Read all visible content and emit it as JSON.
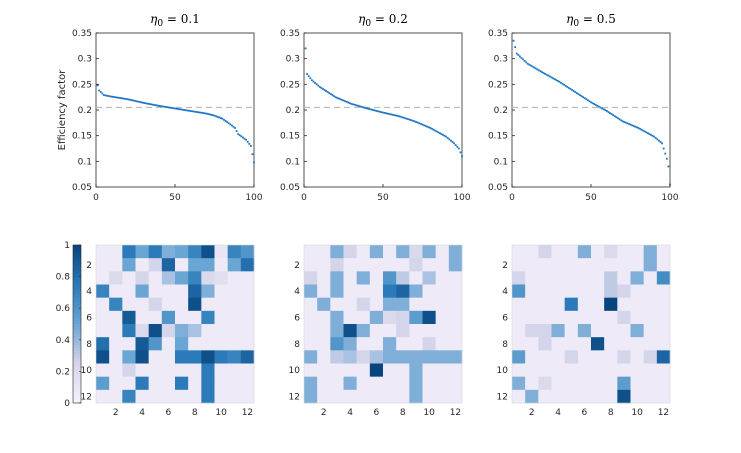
{
  "chart_data": [
    {
      "type": "scatter",
      "panel": "top-1",
      "title_symbol": "η",
      "title_subscript": "0",
      "title_rest": " = 0.1",
      "ylabel": "Efficiency factor",
      "xlim": [
        0,
        100
      ],
      "ylim": [
        0.05,
        0.35
      ],
      "xticks": [
        "0",
        "50",
        "100"
      ],
      "yticks": [
        "0.05",
        "0.1",
        "0.15",
        "0.2",
        "0.25",
        "0.3",
        "0.35"
      ],
      "reference_line": 0.205,
      "curve_anchors": [
        [
          1,
          0.248
        ],
        [
          2,
          0.238
        ],
        [
          5,
          0.229
        ],
        [
          10,
          0.226
        ],
        [
          20,
          0.221
        ],
        [
          30,
          0.214
        ],
        [
          40,
          0.208
        ],
        [
          50,
          0.203
        ],
        [
          60,
          0.198
        ],
        [
          70,
          0.193
        ],
        [
          75,
          0.189
        ],
        [
          80,
          0.183
        ],
        [
          85,
          0.172
        ],
        [
          88,
          0.165
        ],
        [
          90,
          0.153
        ],
        [
          95,
          0.142
        ],
        [
          98,
          0.13
        ],
        [
          100,
          0.098
        ]
      ],
      "n_points": 100,
      "color": "#1f77c4",
      "grid": false
    },
    {
      "type": "scatter",
      "panel": "top-2",
      "title_symbol": "η",
      "title_subscript": "0",
      "title_rest": " = 0.2",
      "ylabel": "",
      "xlim": [
        0,
        100
      ],
      "ylim": [
        0.05,
        0.35
      ],
      "xticks": [
        "0",
        "50",
        "100"
      ],
      "yticks": [
        "0.05",
        "0.1",
        "0.15",
        "0.2",
        "0.25",
        "0.3",
        "0.35"
      ],
      "reference_line": 0.205,
      "curve_anchors": [
        [
          1,
          0.32
        ],
        [
          2,
          0.27
        ],
        [
          5,
          0.258
        ],
        [
          10,
          0.245
        ],
        [
          20,
          0.225
        ],
        [
          30,
          0.212
        ],
        [
          40,
          0.203
        ],
        [
          50,
          0.195
        ],
        [
          60,
          0.188
        ],
        [
          70,
          0.178
        ],
        [
          80,
          0.165
        ],
        [
          90,
          0.148
        ],
        [
          95,
          0.135
        ],
        [
          98,
          0.125
        ],
        [
          100,
          0.11
        ]
      ],
      "n_points": 100,
      "color": "#1f77c4",
      "grid": false
    },
    {
      "type": "scatter",
      "panel": "top-3",
      "title_symbol": "η",
      "title_subscript": "0",
      "title_rest": " = 0.5",
      "ylabel": "",
      "xlim": [
        0,
        100
      ],
      "ylim": [
        0.05,
        0.35
      ],
      "xticks": [
        "0",
        "50",
        "100"
      ],
      "yticks": [
        "0.05",
        "0.1",
        "0.15",
        "0.2",
        "0.25",
        "0.3",
        "0.35"
      ],
      "reference_line": 0.205,
      "curve_anchors": [
        [
          1,
          0.335
        ],
        [
          3,
          0.31
        ],
        [
          10,
          0.29
        ],
        [
          20,
          0.272
        ],
        [
          30,
          0.255
        ],
        [
          40,
          0.235
        ],
        [
          50,
          0.215
        ],
        [
          60,
          0.198
        ],
        [
          70,
          0.178
        ],
        [
          80,
          0.165
        ],
        [
          90,
          0.148
        ],
        [
          95,
          0.135
        ],
        [
          98,
          0.105
        ],
        [
          99,
          0.09
        ],
        [
          100,
          0.055
        ]
      ],
      "n_points": 100,
      "color": "#1f77c4",
      "grid": false
    },
    {
      "type": "heatmap",
      "panel": "bottom-1",
      "size": 12,
      "xticks": [
        "2",
        "4",
        "6",
        "8",
        "10",
        "12"
      ],
      "yticks": [
        "2",
        "4",
        "6",
        "8",
        "10",
        "12"
      ],
      "clim": [
        0,
        1
      ],
      "colorbar_ticks": [
        "0",
        "0.2",
        "0.4",
        "0.6",
        "0.8",
        "1"
      ],
      "color_low": "#f4eef8",
      "color_high": "#08457e",
      "values": [
        [
          0.05,
          0.05,
          0.75,
          0.5,
          0.75,
          0.45,
          0.5,
          0.7,
          0.95,
          0.1,
          0.7,
          0.6
        ],
        [
          0.05,
          0.05,
          0.5,
          0.05,
          0.25,
          0.85,
          0.05,
          0.5,
          0.5,
          0.05,
          0.5,
          0.8
        ],
        [
          0.05,
          0.2,
          0.05,
          0.25,
          0.05,
          0.35,
          0.5,
          0.7,
          0.2,
          0.15,
          0.05,
          0.05
        ],
        [
          0.7,
          0.05,
          0.05,
          0.5,
          0.05,
          0.05,
          0.05,
          0.85,
          0.45,
          0.05,
          0.05,
          0.05
        ],
        [
          0.05,
          0.7,
          0.05,
          0.05,
          0.25,
          0.05,
          0.05,
          0.95,
          0.05,
          0.05,
          0.05,
          0.05
        ],
        [
          0.05,
          0.05,
          0.9,
          0.05,
          0.05,
          0.6,
          0.05,
          0.05,
          0.7,
          0.05,
          0.05,
          0.05
        ],
        [
          0.05,
          0.05,
          0.75,
          0.2,
          0.95,
          0.25,
          0.45,
          0.35,
          0.05,
          0.05,
          0.05,
          0.05
        ],
        [
          0.8,
          0.05,
          0.05,
          0.9,
          0.6,
          0.05,
          0.5,
          0.05,
          0.05,
          0.05,
          0.05,
          0.05
        ],
        [
          0.95,
          0.05,
          0.5,
          0.95,
          0.05,
          0.05,
          0.75,
          0.75,
          0.95,
          0.75,
          0.7,
          0.85
        ],
        [
          0.05,
          0.05,
          0.25,
          0.05,
          0.05,
          0.05,
          0.05,
          0.05,
          0.75,
          0.05,
          0.05,
          0.05
        ],
        [
          0.55,
          0.05,
          0.05,
          0.75,
          0.05,
          0.05,
          0.75,
          0.05,
          0.75,
          0.05,
          0.05,
          0.05
        ],
        [
          0.05,
          0.05,
          0.7,
          0.05,
          0.05,
          0.05,
          0.05,
          0.05,
          0.75,
          0.05,
          0.05,
          0.05
        ]
      ]
    },
    {
      "type": "heatmap",
      "panel": "bottom-2",
      "size": 12,
      "xticks": [
        "2",
        "4",
        "6",
        "8",
        "10",
        "12"
      ],
      "yticks": [
        "2",
        "4",
        "6",
        "8",
        "10",
        "12"
      ],
      "clim": [
        0,
        1
      ],
      "values": [
        [
          0.05,
          0.05,
          0.45,
          0.25,
          0.05,
          0.45,
          0.05,
          0.45,
          0.2,
          0.45,
          0.05,
          0.45
        ],
        [
          0.05,
          0.05,
          0.25,
          0.05,
          0.05,
          0.05,
          0.05,
          0.05,
          0.25,
          0.05,
          0.05,
          0.45
        ],
        [
          0.25,
          0.05,
          0.45,
          0.05,
          0.45,
          0.05,
          0.6,
          0.3,
          0.05,
          0.35,
          0.05,
          0.05
        ],
        [
          0.45,
          0.05,
          0.45,
          0.05,
          0.05,
          0.05,
          0.75,
          0.85,
          0.45,
          0.05,
          0.05,
          0.05
        ],
        [
          0.05,
          0.45,
          0.05,
          0.05,
          0.25,
          0.05,
          0.45,
          0.45,
          0.05,
          0.05,
          0.05,
          0.05
        ],
        [
          0.05,
          0.05,
          0.45,
          0.05,
          0.05,
          0.45,
          0.2,
          0.25,
          0.55,
          0.95,
          0.05,
          0.05
        ],
        [
          0.05,
          0.05,
          0.45,
          0.95,
          0.45,
          0.05,
          0.05,
          0.25,
          0.05,
          0.05,
          0.05,
          0.05
        ],
        [
          0.05,
          0.05,
          0.6,
          0.45,
          0.05,
          0.05,
          0.45,
          0.05,
          0.05,
          0.25,
          0.05,
          0.05
        ],
        [
          0.45,
          0.05,
          0.3,
          0.35,
          0.25,
          0.35,
          0.45,
          0.45,
          0.45,
          0.45,
          0.45,
          0.45
        ],
        [
          0.05,
          0.05,
          0.05,
          0.05,
          0.05,
          1.0,
          0.05,
          0.05,
          0.45,
          0.05,
          0.05,
          0.05
        ],
        [
          0.45,
          0.05,
          0.05,
          0.45,
          0.05,
          0.05,
          0.05,
          0.05,
          0.45,
          0.05,
          0.05,
          0.05
        ],
        [
          0.45,
          0.05,
          0.05,
          0.05,
          0.05,
          0.05,
          0.05,
          0.05,
          0.45,
          0.05,
          0.05,
          0.05
        ]
      ]
    },
    {
      "type": "heatmap",
      "panel": "bottom-3",
      "size": 12,
      "xticks": [
        "2",
        "4",
        "6",
        "8",
        "10",
        "12"
      ],
      "yticks": [
        "2",
        "4",
        "6",
        "8",
        "10",
        "12"
      ],
      "clim": [
        0,
        1
      ],
      "values": [
        [
          0.05,
          0.05,
          0.25,
          0.05,
          0.05,
          0.45,
          0.05,
          0.2,
          0.05,
          0.05,
          0.45,
          0.05
        ],
        [
          0.05,
          0.05,
          0.05,
          0.05,
          0.05,
          0.05,
          0.05,
          0.05,
          0.05,
          0.05,
          0.45,
          0.05
        ],
        [
          0.25,
          0.05,
          0.05,
          0.05,
          0.05,
          0.05,
          0.05,
          0.3,
          0.05,
          0.45,
          0.05,
          0.65
        ],
        [
          0.6,
          0.05,
          0.05,
          0.05,
          0.05,
          0.05,
          0.05,
          0.3,
          0.25,
          0.05,
          0.05,
          0.05
        ],
        [
          0.05,
          0.05,
          0.05,
          0.05,
          0.75,
          0.05,
          0.05,
          1.0,
          0.05,
          0.05,
          0.05,
          0.05
        ],
        [
          0.05,
          0.05,
          0.05,
          0.05,
          0.05,
          0.05,
          0.05,
          0.05,
          0.25,
          0.05,
          0.05,
          0.05
        ],
        [
          0.05,
          0.25,
          0.25,
          0.45,
          0.05,
          0.45,
          0.05,
          0.05,
          0.05,
          0.45,
          0.05,
          0.05
        ],
        [
          0.05,
          0.05,
          0.25,
          0.05,
          0.05,
          0.05,
          0.95,
          0.05,
          0.05,
          0.05,
          0.05,
          0.05
        ],
        [
          0.55,
          0.05,
          0.05,
          0.05,
          0.25,
          0.05,
          0.05,
          0.05,
          0.25,
          0.05,
          0.25,
          0.85
        ],
        [
          0.05,
          0.05,
          0.05,
          0.05,
          0.05,
          0.05,
          0.05,
          0.05,
          0.05,
          0.05,
          0.05,
          0.05
        ],
        [
          0.45,
          0.05,
          0.2,
          0.05,
          0.05,
          0.05,
          0.05,
          0.05,
          0.55,
          0.05,
          0.05,
          0.05
        ],
        [
          0.05,
          0.45,
          0.05,
          0.05,
          0.05,
          0.05,
          0.05,
          0.05,
          0.95,
          0.05,
          0.05,
          0.05
        ]
      ]
    }
  ]
}
